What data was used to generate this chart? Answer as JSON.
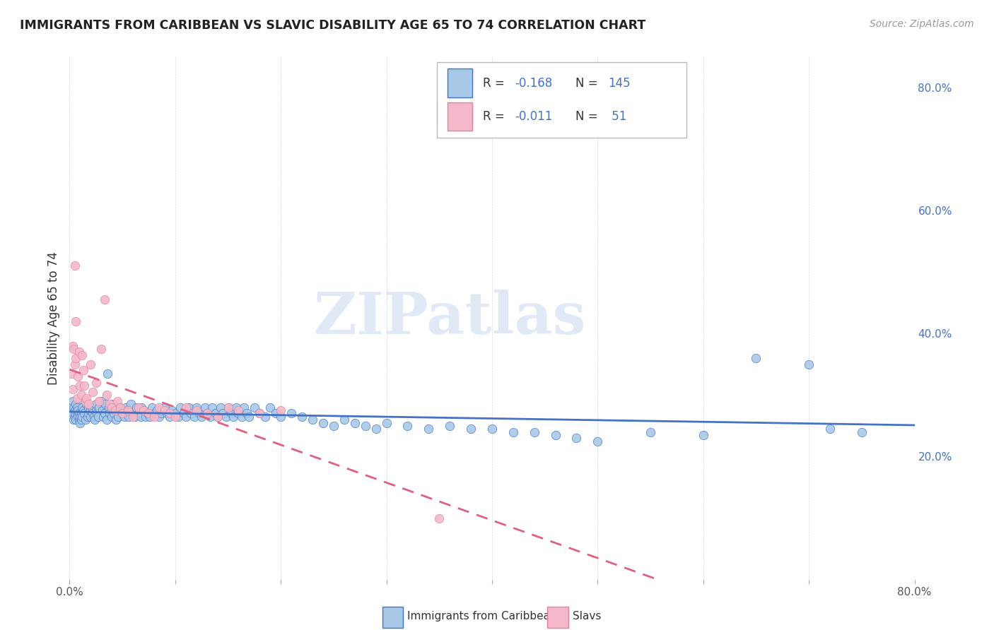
{
  "title": "IMMIGRANTS FROM CARIBBEAN VS SLAVIC DISABILITY AGE 65 TO 74 CORRELATION CHART",
  "source": "Source: ZipAtlas.com",
  "ylabel": "Disability Age 65 to 74",
  "xlim": [
    0.0,
    0.8
  ],
  "ylim": [
    0.0,
    0.85
  ],
  "caribbean_color": "#a8c8e8",
  "slavic_color": "#f4b8c8",
  "caribbean_edge_color": "#4472c4",
  "slavic_edge_color": "#e080a0",
  "caribbean_line_color": "#4472c4",
  "slavic_line_color": "#e06080",
  "watermark": "ZIPatlas",
  "caribbean_x": [
    0.002,
    0.003,
    0.003,
    0.004,
    0.004,
    0.005,
    0.005,
    0.005,
    0.006,
    0.006,
    0.007,
    0.007,
    0.008,
    0.008,
    0.009,
    0.009,
    0.01,
    0.01,
    0.011,
    0.011,
    0.012,
    0.012,
    0.013,
    0.014,
    0.015,
    0.015,
    0.016,
    0.017,
    0.018,
    0.018,
    0.02,
    0.02,
    0.021,
    0.022,
    0.023,
    0.024,
    0.025,
    0.025,
    0.026,
    0.027,
    0.028,
    0.03,
    0.031,
    0.032,
    0.033,
    0.034,
    0.035,
    0.036,
    0.037,
    0.038,
    0.04,
    0.041,
    0.042,
    0.043,
    0.044,
    0.045,
    0.046,
    0.048,
    0.05,
    0.052,
    0.053,
    0.055,
    0.056,
    0.058,
    0.06,
    0.062,
    0.063,
    0.065,
    0.067,
    0.068,
    0.07,
    0.072,
    0.074,
    0.076,
    0.078,
    0.08,
    0.083,
    0.085,
    0.087,
    0.09,
    0.092,
    0.095,
    0.097,
    0.1,
    0.103,
    0.105,
    0.108,
    0.11,
    0.113,
    0.115,
    0.118,
    0.12,
    0.123,
    0.125,
    0.128,
    0.13,
    0.133,
    0.135,
    0.138,
    0.14,
    0.143,
    0.145,
    0.148,
    0.15,
    0.153,
    0.155,
    0.158,
    0.16,
    0.163,
    0.165,
    0.168,
    0.17,
    0.175,
    0.18,
    0.185,
    0.19,
    0.195,
    0.2,
    0.21,
    0.22,
    0.23,
    0.24,
    0.25,
    0.26,
    0.27,
    0.28,
    0.29,
    0.3,
    0.32,
    0.34,
    0.36,
    0.38,
    0.4,
    0.42,
    0.44,
    0.46,
    0.48,
    0.5,
    0.55,
    0.6,
    0.65,
    0.7,
    0.72,
    0.75
  ],
  "caribbean_y": [
    0.28,
    0.27,
    0.29,
    0.26,
    0.28,
    0.275,
    0.265,
    0.27,
    0.26,
    0.285,
    0.27,
    0.28,
    0.265,
    0.275,
    0.26,
    0.27,
    0.255,
    0.265,
    0.27,
    0.26,
    0.265,
    0.28,
    0.275,
    0.27,
    0.26,
    0.29,
    0.285,
    0.265,
    0.27,
    0.28,
    0.265,
    0.275,
    0.28,
    0.27,
    0.265,
    0.26,
    0.275,
    0.285,
    0.27,
    0.265,
    0.28,
    0.29,
    0.275,
    0.265,
    0.27,
    0.285,
    0.26,
    0.335,
    0.28,
    0.27,
    0.265,
    0.285,
    0.27,
    0.28,
    0.26,
    0.275,
    0.265,
    0.28,
    0.27,
    0.265,
    0.28,
    0.275,
    0.265,
    0.285,
    0.27,
    0.265,
    0.28,
    0.27,
    0.265,
    0.28,
    0.275,
    0.265,
    0.27,
    0.265,
    0.28,
    0.27,
    0.275,
    0.265,
    0.27,
    0.28,
    0.27,
    0.265,
    0.275,
    0.27,
    0.265,
    0.28,
    0.27,
    0.265,
    0.28,
    0.27,
    0.265,
    0.28,
    0.27,
    0.265,
    0.28,
    0.27,
    0.265,
    0.28,
    0.27,
    0.265,
    0.28,
    0.27,
    0.265,
    0.28,
    0.27,
    0.265,
    0.28,
    0.27,
    0.265,
    0.28,
    0.27,
    0.265,
    0.28,
    0.27,
    0.265,
    0.28,
    0.27,
    0.265,
    0.27,
    0.265,
    0.26,
    0.255,
    0.25,
    0.26,
    0.255,
    0.25,
    0.245,
    0.255,
    0.25,
    0.245,
    0.25,
    0.245,
    0.245,
    0.24,
    0.24,
    0.235,
    0.23,
    0.225,
    0.24,
    0.235,
    0.36,
    0.35,
    0.245,
    0.24
  ],
  "slavic_x": [
    0.002,
    0.003,
    0.003,
    0.004,
    0.005,
    0.005,
    0.006,
    0.006,
    0.007,
    0.008,
    0.009,
    0.01,
    0.011,
    0.012,
    0.013,
    0.014,
    0.015,
    0.016,
    0.018,
    0.02,
    0.022,
    0.025,
    0.028,
    0.03,
    0.033,
    0.035,
    0.038,
    0.04,
    0.043,
    0.045,
    0.048,
    0.05,
    0.055,
    0.06,
    0.065,
    0.07,
    0.075,
    0.08,
    0.085,
    0.09,
    0.095,
    0.1,
    0.11,
    0.12,
    0.13,
    0.14,
    0.15,
    0.16,
    0.18,
    0.2,
    0.35
  ],
  "slavic_y": [
    0.335,
    0.38,
    0.31,
    0.375,
    0.51,
    0.35,
    0.42,
    0.36,
    0.295,
    0.33,
    0.37,
    0.315,
    0.3,
    0.365,
    0.34,
    0.315,
    0.29,
    0.295,
    0.285,
    0.35,
    0.305,
    0.32,
    0.29,
    0.375,
    0.455,
    0.3,
    0.285,
    0.28,
    0.275,
    0.29,
    0.28,
    0.27,
    0.275,
    0.265,
    0.28,
    0.275,
    0.27,
    0.265,
    0.28,
    0.275,
    0.27,
    0.265,
    0.28,
    0.275,
    0.27,
    0.265,
    0.28,
    0.275,
    0.27,
    0.275,
    0.1
  ]
}
